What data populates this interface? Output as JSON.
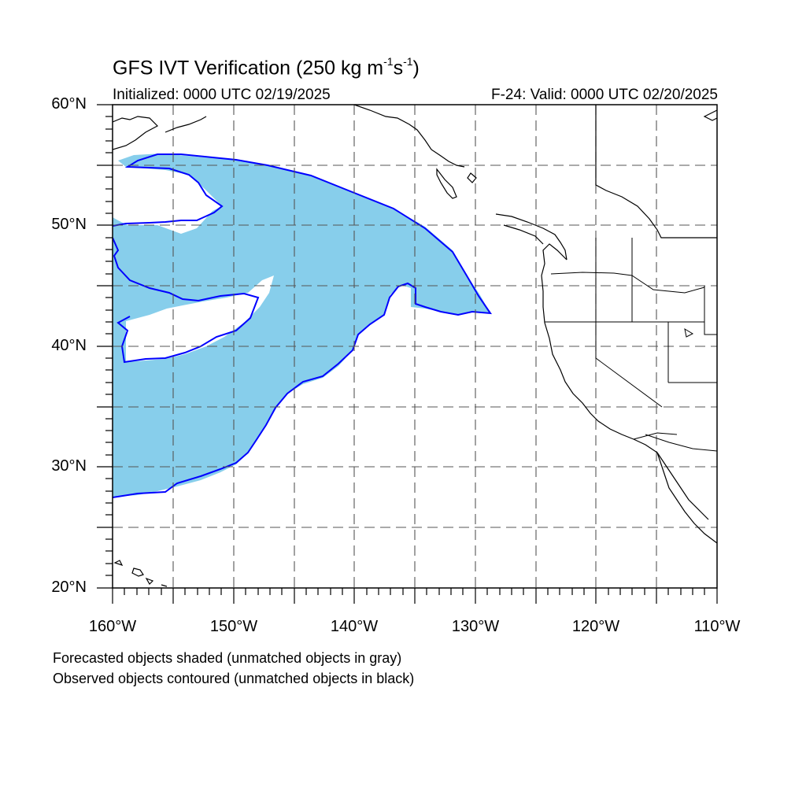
{
  "title": {
    "prefix": "GFS IVT Verification (250 kg m",
    "sup1": "-1",
    "middle": "s",
    "sup2": "-1",
    "suffix": ")"
  },
  "initialized": "Initialized: 0000 UTC 02/19/2025",
  "valid": "F-24: Valid: 0000 UTC 02/20/2025",
  "lat_labels": [
    "60°N",
    "50°N",
    "40°N",
    "30°N",
    "20°N"
  ],
  "lon_labels": [
    "160°W",
    "150°W",
    "140°W",
    "130°W",
    "120°W",
    "110°W"
  ],
  "captions": [
    "Forecasted objects shaded (unmatched objects in gray)",
    "Observed objects contoured (unmatched objects in black)"
  ],
  "map": {
    "lon_range": [
      -160,
      -110
    ],
    "lat_range": [
      20,
      60
    ],
    "grid_lons": [
      -155,
      -150,
      -145,
      -140,
      -135,
      -130,
      -125,
      -120,
      -115
    ],
    "grid_lats": [
      25,
      30,
      35,
      40,
      45,
      50,
      55
    ],
    "forecast_fill_color": "#87ceeb",
    "observed_contour_color": "#0000ff",
    "coastline_color": "#000000"
  }
}
